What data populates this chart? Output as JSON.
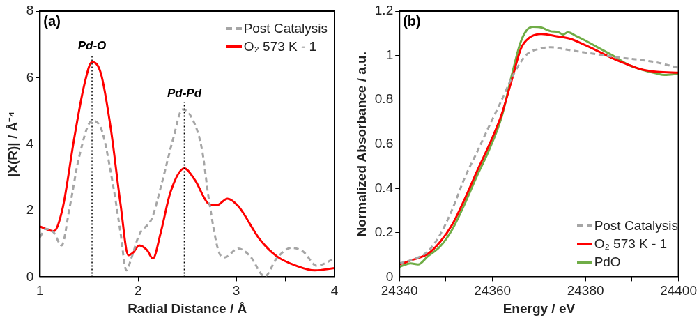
{
  "chart_data": [
    {
      "type": "line",
      "xlabel": "Radial Distance / Å",
      "ylabel": "|X(R)| / Å⁻⁴",
      "annotations": [
        "(a)"
      ],
      "legend": "top right",
      "marker": "none",
      "grid": false,
      "xlim": [
        1,
        4
      ],
      "xticks": [
        1,
        {
          "value": 1.5,
          "label": null
        },
        2,
        {
          "value": 2.5,
          "label": null
        },
        3,
        {
          "value": 3.5,
          "label": null
        },
        4
      ],
      "ylim": [
        0,
        8
      ],
      "yticks": [
        0,
        2,
        4,
        6,
        8
      ],
      "ref_lines": [
        {
          "axis": "x",
          "value": 1.53,
          "label": "Pd-O",
          "color": "#000000",
          "line_style": "dotted"
        },
        {
          "axis": "x",
          "value": 2.47,
          "label": "Pd-Pd",
          "color": "#000000",
          "line_style": "dotted"
        }
      ],
      "series": [
        {
          "name": "Post Catalysis",
          "color": "#a6a6a6",
          "line_style": "dashed",
          "x": [
            1.0,
            1.06,
            1.14,
            1.22,
            1.3,
            1.4,
            1.53,
            1.62,
            1.74,
            1.82,
            1.88,
            1.93,
            2.01,
            2.14,
            2.23,
            2.36,
            2.45,
            2.55,
            2.65,
            2.72,
            2.82,
            2.88,
            3.02,
            3.14,
            3.29,
            3.41,
            3.56,
            3.68,
            3.82,
            4.0
          ],
          "values": [
            1.2,
            1.45,
            1.34,
            0.95,
            2.06,
            3.63,
            4.7,
            4.49,
            2.84,
            1.34,
            0.2,
            0.56,
            1.27,
            1.77,
            2.7,
            4.2,
            5.04,
            4.77,
            3.84,
            2.34,
            0.77,
            0.59,
            0.86,
            0.63,
            0.02,
            0.56,
            0.88,
            0.77,
            0.34,
            0.56
          ]
        },
        {
          "name": "O₂ 573 K - 1",
          "color": "#ff0000",
          "line_style": "solid",
          "x": [
            1.0,
            1.14,
            1.23,
            1.35,
            1.45,
            1.53,
            1.62,
            1.72,
            1.82,
            1.9,
            1.95,
            2.01,
            2.09,
            2.15,
            2.23,
            2.33,
            2.47,
            2.58,
            2.72,
            2.8,
            2.91,
            3.02,
            3.24,
            3.41,
            3.61,
            3.8,
            4.0
          ],
          "values": [
            1.52,
            1.38,
            2.06,
            4.2,
            5.77,
            6.47,
            6.13,
            4.49,
            2.2,
            0.66,
            0.74,
            0.95,
            0.81,
            0.56,
            1.34,
            2.56,
            3.27,
            2.91,
            2.2,
            2.16,
            2.36,
            2.13,
            1.13,
            0.63,
            0.34,
            0.2,
            0.27
          ]
        }
      ]
    },
    {
      "type": "line",
      "xlabel": "Energy / eV",
      "ylabel": "Normalized Absorbance / a.u.",
      "annotations": [
        "(b)"
      ],
      "legend": "bottom right",
      "marker": "none",
      "grid": false,
      "xlim": [
        24340,
        24400
      ],
      "xticks": [
        24340,
        {
          "value": 24350,
          "label": null
        },
        24360,
        {
          "value": 24370,
          "label": null
        },
        24380,
        {
          "value": 24390,
          "label": null
        },
        24400
      ],
      "ylim": [
        0,
        1.2
      ],
      "yticks": [
        0,
        0.2,
        0.4,
        0.6,
        0.8,
        1,
        1.2
      ],
      "series": [
        {
          "name": "Post Catalysis",
          "color": "#a6a6a6",
          "line_style": "dashed",
          "x": [
            24340,
            24343.4,
            24346.1,
            24348.7,
            24351.4,
            24354,
            24356.7,
            24359.3,
            24362,
            24364.6,
            24367.3,
            24370,
            24372.6,
            24375.8,
            24379,
            24383.2,
            24387.5,
            24391.7,
            24394.8,
            24400
          ],
          "values": [
            0.062,
            0.083,
            0.116,
            0.19,
            0.308,
            0.447,
            0.565,
            0.682,
            0.8,
            0.918,
            1.003,
            1.03,
            1.037,
            1.027,
            1.016,
            1.003,
            0.99,
            0.98,
            0.971,
            0.944
          ]
        },
        {
          "name": "O₂ 573 K - 1",
          "color": "#ff0000",
          "line_style": "solid",
          "x": [
            24340,
            24342.4,
            24346.1,
            24348.7,
            24351.4,
            24354,
            24356.7,
            24359.3,
            24362,
            24364.1,
            24366.2,
            24367.8,
            24370.5,
            24373.7,
            24376.8,
            24380,
            24383.2,
            24386.4,
            24389,
            24391.7,
            24395.4,
            24400
          ],
          "values": [
            0.057,
            0.075,
            0.105,
            0.158,
            0.239,
            0.351,
            0.479,
            0.597,
            0.736,
            0.886,
            1.035,
            1.078,
            1.097,
            1.087,
            1.075,
            1.046,
            1.014,
            0.982,
            0.96,
            0.939,
            0.926,
            0.922
          ]
        },
        {
          "name": "PdO",
          "color": "#70ad47",
          "line_style": "solid",
          "x": [
            24340,
            24342.4,
            24344,
            24346.1,
            24348.7,
            24351.4,
            24354,
            24356.7,
            24359.3,
            24362,
            24364.1,
            24366,
            24367.3,
            24368.7,
            24370.5,
            24372.4,
            24374.2,
            24375.2,
            24376.2,
            24377.9,
            24380,
            24383.2,
            24386.4,
            24389,
            24391.7,
            24395.4,
            24397,
            24400
          ],
          "values": [
            0.046,
            0.062,
            0.057,
            0.094,
            0.137,
            0.217,
            0.329,
            0.458,
            0.575,
            0.725,
            0.907,
            1.057,
            1.112,
            1.129,
            1.126,
            1.11,
            1.105,
            1.094,
            1.105,
            1.089,
            1.067,
            1.03,
            0.993,
            0.96,
            0.939,
            0.918,
            0.912,
            0.918
          ]
        }
      ]
    }
  ]
}
